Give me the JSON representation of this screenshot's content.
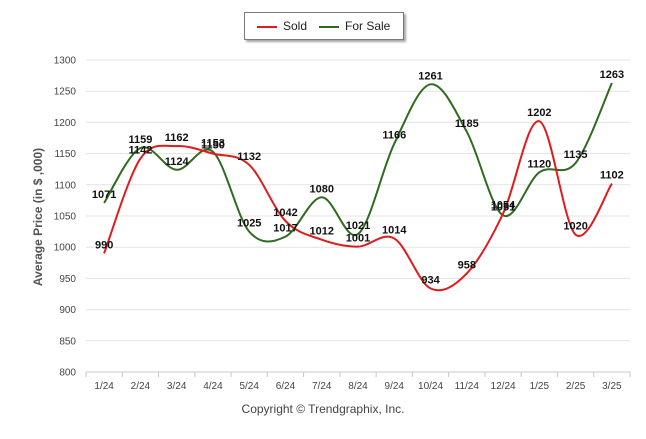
{
  "chart_data": {
    "type": "line",
    "categories": [
      "1/24",
      "2/24",
      "3/24",
      "4/24",
      "5/24",
      "6/24",
      "7/24",
      "8/24",
      "9/24",
      "10/24",
      "11/24",
      "12/24",
      "1/25",
      "2/25",
      "3/25"
    ],
    "series": [
      {
        "name": "Sold",
        "color": "#e01b1b",
        "values": [
          990,
          1142,
          1162,
          1150,
          1132,
          1042,
          1012,
          1001,
          1014,
          934,
          958,
          1054,
          1202,
          1020,
          1102
        ]
      },
      {
        "name": "For Sale",
        "color": "#2e6b1e",
        "values": [
          1071,
          1159,
          1124,
          1153,
          1025,
          1017,
          1080,
          1021,
          1166,
          1261,
          1185,
          1051,
          1120,
          1135,
          1263
        ]
      }
    ],
    "ylabel": "Average Price (in $ ,000)",
    "ylim": [
      800,
      1300
    ],
    "yticks": [
      800,
      850,
      900,
      950,
      1000,
      1050,
      1100,
      1150,
      1200,
      1250,
      1300
    ],
    "grid": true,
    "legend": "top-center"
  },
  "footer": "Copyright © Trendgraphix, Inc."
}
